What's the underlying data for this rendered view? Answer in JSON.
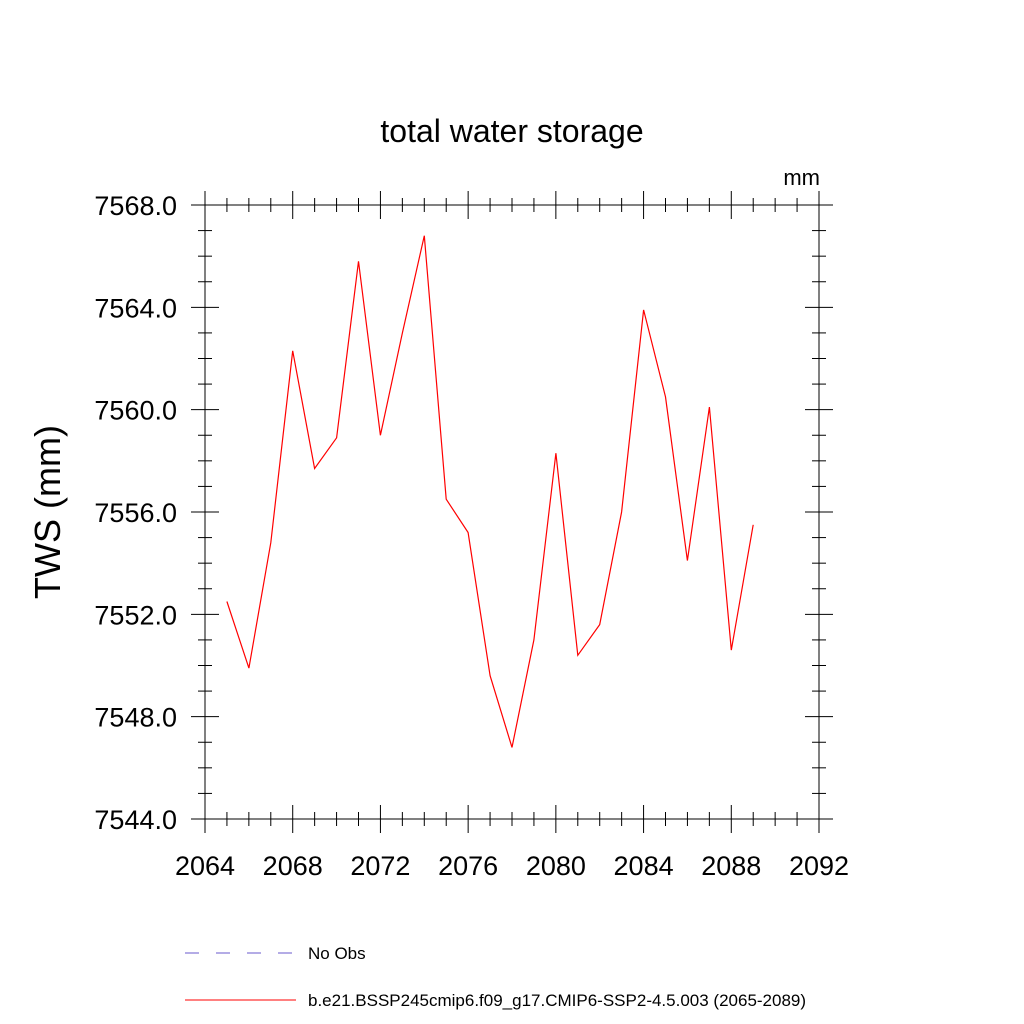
{
  "chart_data": {
    "type": "line",
    "title": "total water storage",
    "units": "mm",
    "xlabel": "",
    "ylabel": "TWS  (mm)",
    "xlim": [
      2064,
      2092
    ],
    "ylim": [
      7544,
      7568
    ],
    "x_ticks": [
      2064,
      2068,
      2072,
      2076,
      2080,
      2084,
      2088,
      2092
    ],
    "x_tick_labels": [
      "2064",
      "2068",
      "2072",
      "2076",
      "2080",
      "2084",
      "2088",
      "2092"
    ],
    "y_ticks": [
      7544,
      7548,
      7552,
      7556,
      7560,
      7564,
      7568
    ],
    "y_tick_labels": [
      "7544.0",
      "7548.0",
      "7552.0",
      "7556.0",
      "7560.0",
      "7564.0",
      "7568.0"
    ],
    "x_minor_step": 1,
    "y_minor_step": 1,
    "series": [
      {
        "name": "b.e21.BSSP245cmip6.f09_g17.CMIP6-SSP2-4.5.003 (2065-2089)",
        "color": "#ff0000",
        "x": [
          2065,
          2066,
          2067,
          2068,
          2069,
          2070,
          2071,
          2072,
          2073,
          2074,
          2075,
          2076,
          2077,
          2078,
          2079,
          2080,
          2081,
          2082,
          2083,
          2084,
          2085,
          2086,
          2087,
          2088,
          2089
        ],
        "values": [
          7552.5,
          7549.9,
          7554.8,
          7562.3,
          7557.7,
          7558.9,
          7565.8,
          7559.0,
          7563.0,
          7566.8,
          7556.5,
          7555.2,
          7549.6,
          7546.8,
          7551.0,
          7558.3,
          7550.4,
          7551.6,
          7556.0,
          7563.9,
          7560.5,
          7554.1,
          7560.1,
          7550.6,
          7555.5
        ]
      }
    ],
    "legend": [
      {
        "label": "No Obs",
        "color": "#6a5acd",
        "style": "dashed"
      },
      {
        "label": "b.e21.BSSP245cmip6.f09_g17.CMIP6-SSP2-4.5.003 (2065-2089)",
        "color": "#ff0000",
        "style": "solid"
      }
    ],
    "legend_position": "bottom-center"
  }
}
